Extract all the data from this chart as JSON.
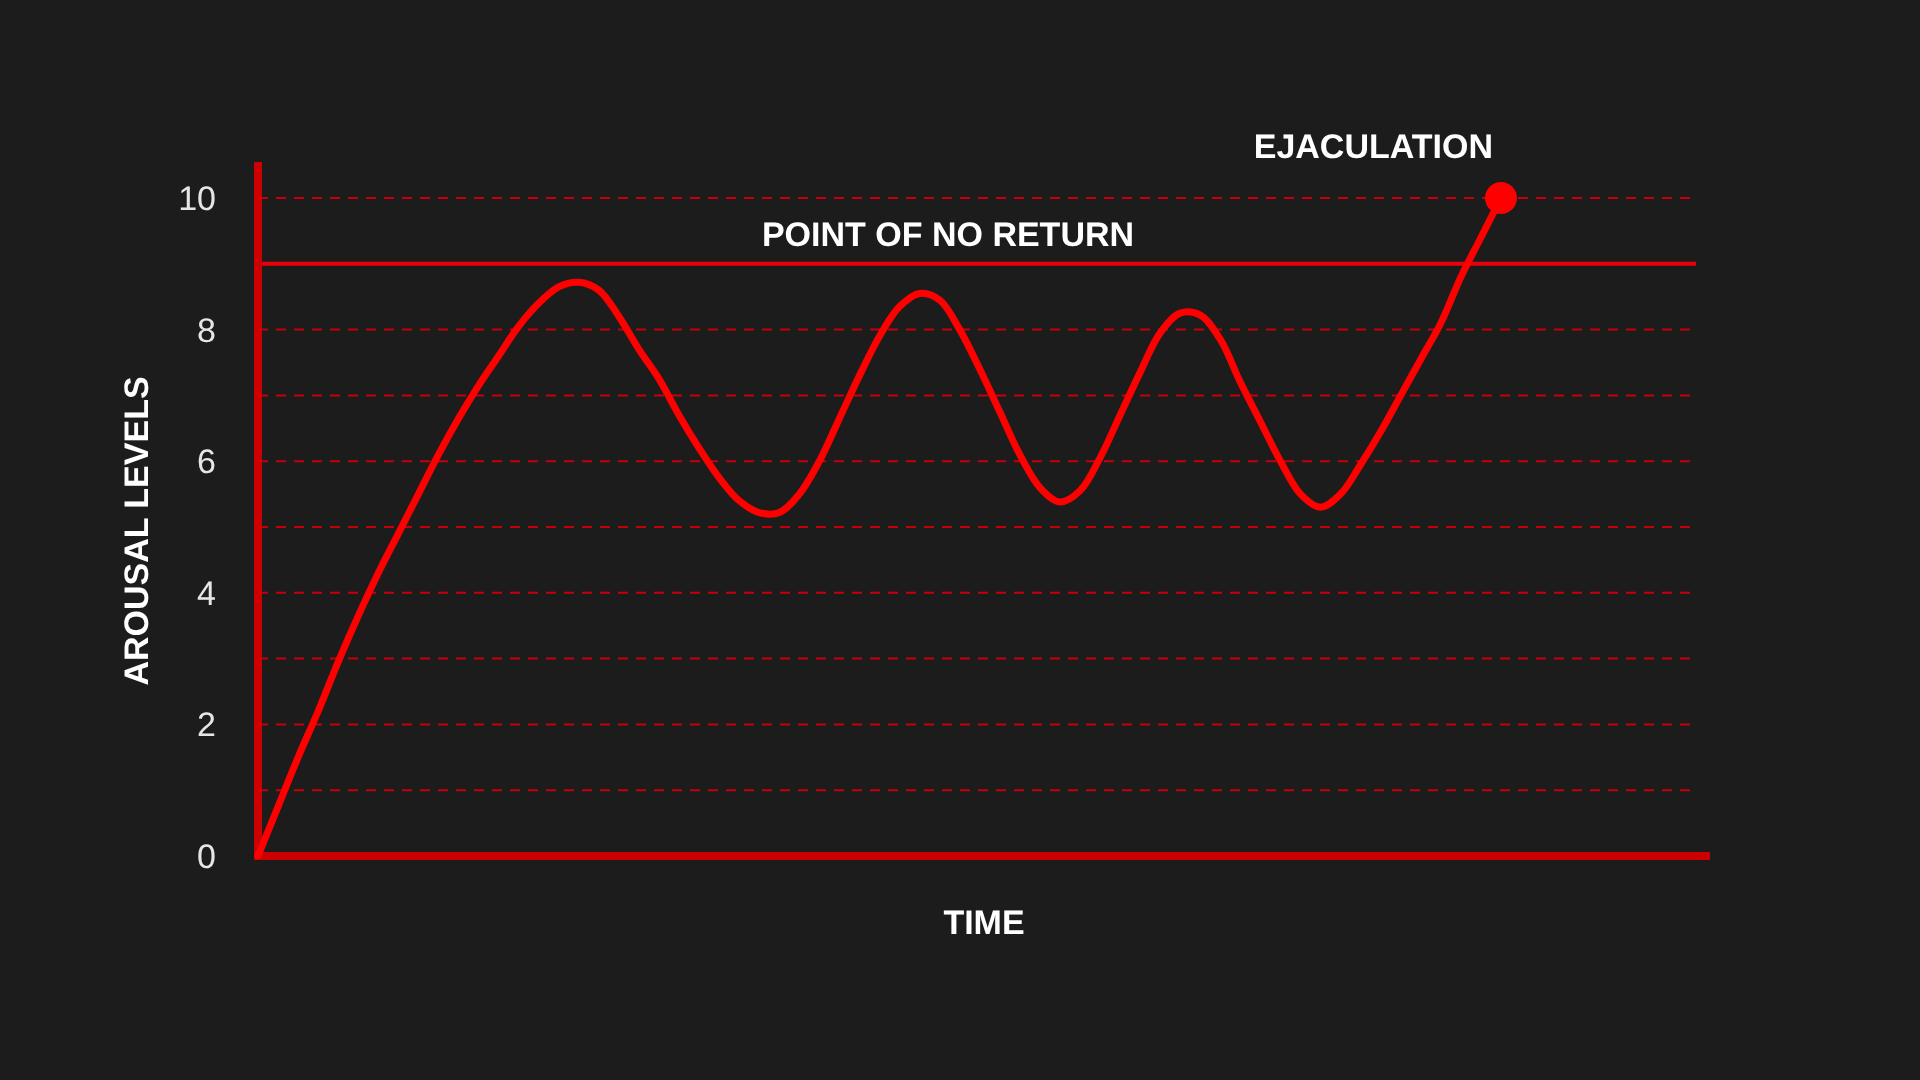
{
  "chart_data": {
    "type": "line",
    "xlabel": "TIME",
    "ylabel": "AROUSAL LEVELS",
    "categories": [
      null,
      null,
      null,
      null,
      null,
      null,
      null,
      null,
      null,
      null,
      null,
      null,
      null,
      null,
      null,
      null,
      null,
      null,
      null,
      null,
      null,
      null,
      null,
      null,
      null,
      null,
      null,
      null,
      null,
      null,
      null,
      null,
      null,
      null,
      null,
      null,
      null,
      null,
      null,
      null,
      null,
      null,
      null,
      null,
      null,
      null,
      null,
      null,
      null,
      null,
      null,
      null,
      null,
      null,
      null,
      null,
      null,
      null,
      null,
      null,
      null,
      null,
      null
    ],
    "series": [
      {
        "color": "#ff0000",
        "values": [
          0,
          0.75,
          1.5,
          2.2,
          2.95,
          3.65,
          4.3,
          4.9,
          5.5,
          6.1,
          6.65,
          7.15,
          7.6,
          8.05,
          8.4,
          8.65,
          8.72,
          8.6,
          8.2,
          7.7,
          7.25,
          6.7,
          6.2,
          5.75,
          5.4,
          5.22,
          5.22,
          5.5,
          6.0,
          6.65,
          7.3,
          7.9,
          8.35,
          8.55,
          8.45,
          8.0,
          7.4,
          6.75,
          6.1,
          5.6,
          5.38,
          5.55,
          6.05,
          6.7,
          7.35,
          7.95,
          8.25,
          8.22,
          7.85,
          7.2,
          6.6,
          6.0,
          5.5,
          5.3,
          5.5,
          5.95,
          6.45,
          7.0,
          7.55,
          8.1,
          8.8,
          9.4,
          10
        ]
      },
      {
        "type": "scatter",
        "marker": "circle",
        "color": "#ff0000",
        "values": [
          null,
          null,
          null,
          null,
          null,
          null,
          null,
          null,
          null,
          null,
          null,
          null,
          null,
          null,
          null,
          null,
          null,
          null,
          null,
          null,
          null,
          null,
          null,
          null,
          null,
          null,
          null,
          null,
          null,
          null,
          null,
          null,
          null,
          null,
          null,
          null,
          null,
          null,
          null,
          null,
          null,
          null,
          null,
          null,
          null,
          null,
          null,
          null,
          null,
          null,
          null,
          null,
          null,
          null,
          null,
          null,
          null,
          null,
          null,
          null,
          null,
          null,
          10
        ]
      }
    ],
    "ylim": [
      0,
      10
    ],
    "yticks": [
      0,
      {
        "value": 1,
        "label": null
      },
      2,
      {
        "value": 3,
        "label": null
      },
      4,
      {
        "value": 5,
        "label": null
      },
      6,
      {
        "value": 7,
        "label": null
      },
      8,
      {
        "value": 9,
        "label": null
      },
      10
    ],
    "grid": "y",
    "marker": "none",
    "line_style": "solid",
    "ref_lines": [
      {
        "axis": "y",
        "value": 9,
        "label": "POINT OF NO RETURN",
        "color": "#e8000a",
        "line_style": "solid"
      }
    ],
    "annotations": [
      "EJACULATION"
    ]
  }
}
